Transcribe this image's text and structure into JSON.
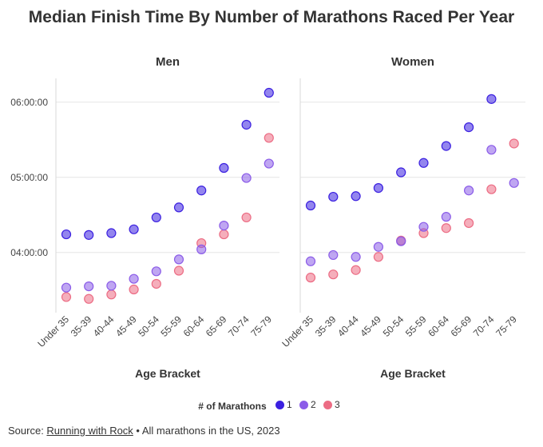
{
  "title": "Median Finish Time By Number of Marathons Raced Per Year",
  "x_axis_label": "Age Bracket",
  "legend": {
    "title": "# of Marathons",
    "items": [
      {
        "label": "1",
        "color": "#3b20e0"
      },
      {
        "label": "2",
        "color": "#8b5ce8"
      },
      {
        "label": "3",
        "color": "#ec6c84"
      }
    ]
  },
  "source": {
    "prefix": "Source: ",
    "link_text": "Running with Rock",
    "suffix": " • All marathons in the US, 2023"
  },
  "chart_data": {
    "type": "scatter",
    "categories": [
      "Under 35",
      "35-39",
      "40-44",
      "45-49",
      "50-54",
      "55-59",
      "60-64",
      "65-69",
      "70-74",
      "75-79"
    ],
    "ytick_labels": [
      "04:00:00",
      "05:00:00",
      "06:00:00"
    ],
    "ytick_values_min": [
      240,
      300,
      360
    ],
    "ylim_min": [
      192,
      379
    ],
    "grid": true,
    "legend_position": "bottom",
    "panels": [
      {
        "title": "Men",
        "series": [
          {
            "name": "1",
            "color": "#3b20e0",
            "values_min": [
              254.5,
              254.0,
              255.5,
              258.5,
              268.0,
              276.0,
              289.5,
              307.5,
              342.0,
              367.5
            ]
          },
          {
            "name": "2",
            "color": "#8b5ce8",
            "values_min": [
              212.0,
              213.0,
              213.5,
              219.0,
              225.0,
              234.5,
              242.5,
              261.5,
              299.5,
              311.0
            ]
          },
          {
            "name": "3",
            "color": "#ec6c84",
            "values_min": [
              204.5,
              203.0,
              206.5,
              210.5,
              215.0,
              225.5,
              247.5,
              254.5,
              268.0,
              331.5
            ]
          }
        ]
      },
      {
        "title": "Women",
        "series": [
          {
            "name": "1",
            "color": "#3b20e0",
            "values_min": [
              277.5,
              284.5,
              285.0,
              291.5,
              304.0,
              311.5,
              325.0,
              340.0,
              362.5,
              null
            ]
          },
          {
            "name": "2",
            "color": "#8b5ce8",
            "values_min": [
              233.0,
              238.0,
              236.5,
              244.5,
              249.0,
              260.5,
              268.5,
              289.5,
              322.0,
              295.5
            ]
          },
          {
            "name": "3",
            "color": "#ec6c84",
            "values_min": [
              220.0,
              222.5,
              226.0,
              236.5,
              249.5,
              255.5,
              259.5,
              263.5,
              290.5,
              327.0
            ]
          }
        ]
      }
    ]
  }
}
